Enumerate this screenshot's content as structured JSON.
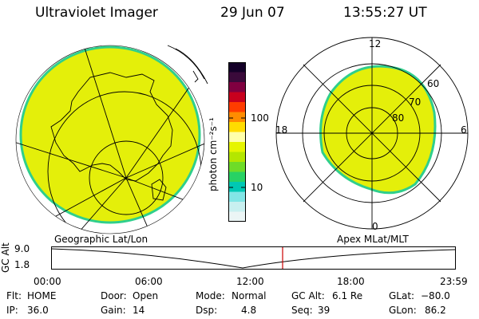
{
  "header": {
    "title": "Ultraviolet Imager",
    "date": "29 Jun 07",
    "time": "13:55:27 UT"
  },
  "colorbar": {
    "unit_label": "photon cm⁻²s⁻¹",
    "ticks": [
      "100",
      "10"
    ],
    "colors": [
      "#140028",
      "#3a0a3a",
      "#800040",
      "#c8001e",
      "#ff3c00",
      "#ff8c00",
      "#ffdc00",
      "#ffffaa",
      "#e6f500",
      "#b4e600",
      "#6edc28",
      "#28d264",
      "#00c8b4",
      "#82e6e6",
      "#c8f0f0",
      "#ebf5f5"
    ]
  },
  "left_map": {
    "caption": "Geographic Lat/Lon",
    "fill_color": "#e4ef0a",
    "edge_color": "#2fcf8c"
  },
  "right_map": {
    "caption": "Apex MLat/MLT",
    "mlt_labels": {
      "top": "12",
      "left": "18",
      "right": "6",
      "bottom": "0"
    },
    "lat_labels": [
      "60",
      "70",
      "80"
    ],
    "fill_color": "#e4ef0a",
    "edge_color": "#2fcf8c"
  },
  "altitude_plot": {
    "axis_title": "GC Alt",
    "y_ticks": [
      "9.0",
      "1.8"
    ],
    "x_ticks": [
      "00:00",
      "06:00",
      "12:00",
      "18:00",
      "23:59"
    ],
    "marker_color": "#cc0000"
  },
  "info": {
    "row1": [
      {
        "label": "Flt:",
        "value": "HOME"
      },
      {
        "label": "Door:",
        "value": "Open"
      },
      {
        "label": "Mode:",
        "value": "Normal"
      },
      {
        "label": "GC Alt:",
        "value": "6.1 Re"
      },
      {
        "label": "GLat:",
        "value": "−80.0"
      }
    ],
    "row2": [
      {
        "label": "IP:",
        "value": "36.0"
      },
      {
        "label": "Gain:",
        "value": "14"
      },
      {
        "label": "Dsp:",
        "value": "4.8"
      },
      {
        "label": "Seq:",
        "value": "39"
      },
      {
        "label": "GLon:",
        "value": "86.2"
      }
    ]
  }
}
